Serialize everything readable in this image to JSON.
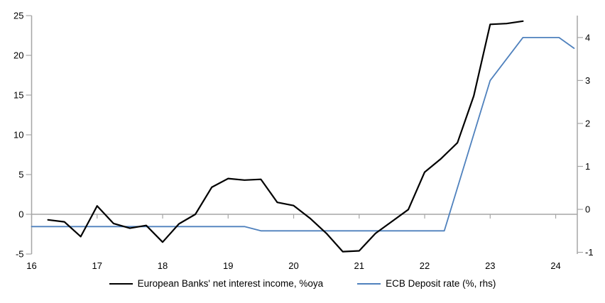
{
  "chart_data": {
    "type": "line",
    "title": "",
    "xlabel": "",
    "ylabel_left": "",
    "ylabel_right": "",
    "grid": "zero-line-only",
    "legend_position": "bottom-center",
    "colors": {
      "axis": "#a6a6a6",
      "zero_line": "#a6a6a6",
      "nii_line": "#000000",
      "ecb_line": "#4f81bd"
    },
    "x_axis": {
      "ticks": [
        16,
        17,
        18,
        19,
        20,
        21,
        22,
        23,
        24
      ],
      "min": 16,
      "max": 24.33
    },
    "left_axis": {
      "ticks": [
        25,
        20,
        15,
        10,
        5,
        0,
        -5
      ],
      "min": -5,
      "max": 25
    },
    "right_axis": {
      "ticks": [
        4,
        3,
        2,
        1,
        0,
        -1
      ],
      "min": -1.04,
      "max": 4.51
    },
    "series": [
      {
        "name": "European Banks' net interest income, %oya",
        "axis": "left",
        "color": "#000000",
        "x": [
          16.25,
          16.5,
          16.75,
          17.0,
          17.25,
          17.5,
          17.75,
          18.0,
          18.25,
          18.5,
          18.75,
          19.0,
          19.25,
          19.5,
          19.75,
          20.0,
          20.25,
          20.5,
          20.75,
          21.0,
          21.25,
          21.5,
          21.75,
          22.0,
          22.25,
          22.5,
          22.75,
          23.0,
          23.25,
          23.5
        ],
        "values": [
          -0.7,
          -0.95,
          -2.8,
          1.05,
          -1.15,
          -1.75,
          -1.4,
          -3.5,
          -1.2,
          0.0,
          3.4,
          4.5,
          4.3,
          4.4,
          1.5,
          1.1,
          -0.5,
          -2.4,
          -4.7,
          -4.6,
          -2.4,
          -0.9,
          0.6,
          5.3,
          7.0,
          9.0,
          14.9,
          23.9,
          24.0,
          24.3
        ]
      },
      {
        "name": "ECB Deposit rate (%, rhs)",
        "axis": "right",
        "color": "#4f81bd",
        "x": [
          16.0,
          19.25,
          19.5,
          22.3,
          23.0,
          23.5,
          24.05,
          24.28
        ],
        "values": [
          -0.4,
          -0.4,
          -0.5,
          -0.5,
          3.0,
          4.0,
          4.0,
          3.75
        ]
      }
    ]
  }
}
